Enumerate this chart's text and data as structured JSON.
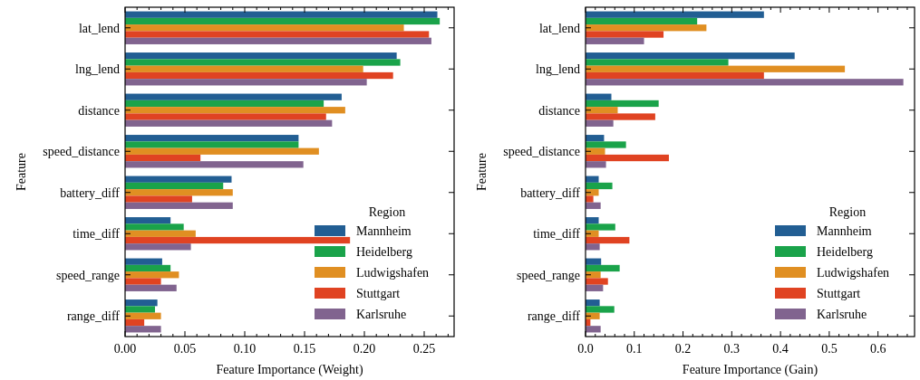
{
  "chart_data": [
    {
      "type": "bar",
      "orientation": "horizontal",
      "xlabel": "Feature Importance (Weight)",
      "ylabel": "Feature",
      "legend_title": "Region",
      "legend": "bottom right",
      "grid": false,
      "categories": [
        "lat_lend",
        "lng_lend",
        "distance",
        "speed_distance",
        "battery_diff",
        "time_diff",
        "speed_range",
        "range_diff"
      ],
      "xlim": [
        0,
        0.275
      ],
      "xticks": [
        {
          "value": 0,
          "label": "0.00"
        },
        {
          "value": 0.01,
          "label": null
        },
        {
          "value": 0.02,
          "label": null
        },
        {
          "value": 0.03,
          "label": null
        },
        {
          "value": 0.04,
          "label": null
        },
        {
          "value": 0.05,
          "label": "0.05"
        },
        {
          "value": 0.06,
          "label": null
        },
        {
          "value": 0.07,
          "label": null
        },
        {
          "value": 0.08,
          "label": null
        },
        {
          "value": 0.09,
          "label": null
        },
        {
          "value": 0.1,
          "label": "0.10"
        },
        {
          "value": 0.11,
          "label": null
        },
        {
          "value": 0.12,
          "label": null
        },
        {
          "value": 0.13,
          "label": null
        },
        {
          "value": 0.14,
          "label": null
        },
        {
          "value": 0.15,
          "label": "0.15"
        },
        {
          "value": 0.16,
          "label": null
        },
        {
          "value": 0.17,
          "label": null
        },
        {
          "value": 0.18,
          "label": null
        },
        {
          "value": 0.19,
          "label": null
        },
        {
          "value": 0.2,
          "label": "0.20"
        },
        {
          "value": 0.21,
          "label": null
        },
        {
          "value": 0.22,
          "label": null
        },
        {
          "value": 0.23,
          "label": null
        },
        {
          "value": 0.24,
          "label": null
        },
        {
          "value": 0.25,
          "label": "0.25"
        },
        {
          "value": 0.26,
          "label": null
        },
        {
          "value": 0.27,
          "label": null
        }
      ],
      "series": [
        {
          "name": "Mannheim",
          "color": "#225e93",
          "values": [
            0.261,
            0.227,
            0.181,
            0.145,
            0.089,
            0.038,
            0.031,
            0.027
          ]
        },
        {
          "name": "Heidelberg",
          "color": "#1aa34a",
          "values": [
            0.263,
            0.23,
            0.166,
            0.145,
            0.082,
            0.049,
            0.038,
            0.025
          ]
        },
        {
          "name": "Ludwigshafen",
          "color": "#e08f22",
          "values": [
            0.233,
            0.199,
            0.184,
            0.162,
            0.09,
            0.059,
            0.045,
            0.03
          ]
        },
        {
          "name": "Stuttgart",
          "color": "#e04322",
          "values": [
            0.254,
            0.224,
            0.168,
            0.063,
            0.056,
            0.188,
            0.03,
            0.016
          ]
        },
        {
          "name": "Karlsruhe",
          "color": "#81648f",
          "values": [
            0.256,
            0.202,
            0.173,
            0.149,
            0.09,
            0.055,
            0.043,
            0.03
          ]
        }
      ]
    },
    {
      "type": "bar",
      "orientation": "horizontal",
      "xlabel": "Feature Importance (Gain)",
      "ylabel": "Feature",
      "legend_title": "Region",
      "legend": "bottom right",
      "grid": false,
      "categories": [
        "lat_lend",
        "lng_lend",
        "distance",
        "speed_distance",
        "battery_diff",
        "time_diff",
        "speed_range",
        "range_diff"
      ],
      "xlim": [
        0,
        0.675
      ],
      "xticks": [
        {
          "value": 0,
          "label": "0.0"
        },
        {
          "value": 0.02,
          "label": null
        },
        {
          "value": 0.04,
          "label": null
        },
        {
          "value": 0.06,
          "label": null
        },
        {
          "value": 0.08,
          "label": null
        },
        {
          "value": 0.1,
          "label": "0.1"
        },
        {
          "value": 0.12,
          "label": null
        },
        {
          "value": 0.14,
          "label": null
        },
        {
          "value": 0.16,
          "label": null
        },
        {
          "value": 0.18,
          "label": null
        },
        {
          "value": 0.2,
          "label": "0.2"
        },
        {
          "value": 0.22,
          "label": null
        },
        {
          "value": 0.24,
          "label": null
        },
        {
          "value": 0.26,
          "label": null
        },
        {
          "value": 0.28,
          "label": null
        },
        {
          "value": 0.3,
          "label": "0.3"
        },
        {
          "value": 0.32,
          "label": null
        },
        {
          "value": 0.34,
          "label": null
        },
        {
          "value": 0.36,
          "label": null
        },
        {
          "value": 0.38,
          "label": null
        },
        {
          "value": 0.4,
          "label": "0.4"
        },
        {
          "value": 0.42,
          "label": null
        },
        {
          "value": 0.44,
          "label": null
        },
        {
          "value": 0.46,
          "label": null
        },
        {
          "value": 0.48,
          "label": null
        },
        {
          "value": 0.5,
          "label": "0.5"
        },
        {
          "value": 0.52,
          "label": null
        },
        {
          "value": 0.54,
          "label": null
        },
        {
          "value": 0.56,
          "label": null
        },
        {
          "value": 0.58,
          "label": null
        },
        {
          "value": 0.6,
          "label": "0.6"
        },
        {
          "value": 0.62,
          "label": null
        },
        {
          "value": 0.64,
          "label": null
        },
        {
          "value": 0.66,
          "label": null
        }
      ],
      "series": [
        {
          "name": "Mannheim",
          "color": "#225e93",
          "values": [
            0.366,
            0.429,
            0.053,
            0.038,
            0.027,
            0.027,
            0.032,
            0.029
          ]
        },
        {
          "name": "Heidelberg",
          "color": "#1aa34a",
          "values": [
            0.229,
            0.293,
            0.15,
            0.083,
            0.055,
            0.061,
            0.07,
            0.059
          ]
        },
        {
          "name": "Ludwigshafen",
          "color": "#e08f22",
          "values": [
            0.248,
            0.532,
            0.066,
            0.04,
            0.027,
            0.027,
            0.031,
            0.029
          ]
        },
        {
          "name": "Stuttgart",
          "color": "#e04322",
          "values": [
            0.16,
            0.366,
            0.143,
            0.171,
            0.016,
            0.09,
            0.046,
            0.01
          ]
        },
        {
          "name": "Karlsruhe",
          "color": "#81648f",
          "values": [
            0.12,
            0.652,
            0.057,
            0.042,
            0.031,
            0.029,
            0.036,
            0.031
          ]
        }
      ]
    }
  ]
}
